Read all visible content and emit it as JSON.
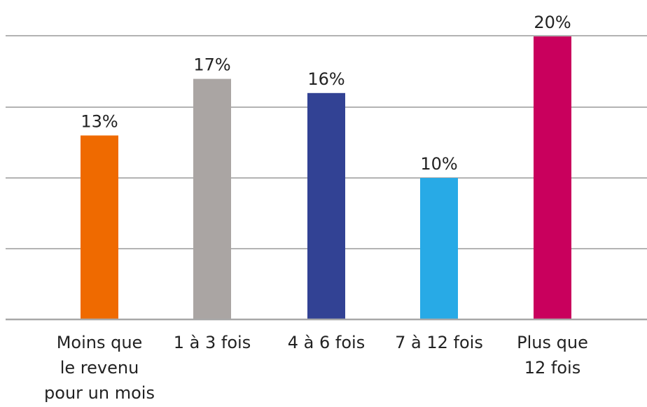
{
  "chart_data": {
    "type": "bar",
    "title": "",
    "xlabel": "",
    "ylabel": "",
    "ylim": [
      0,
      20
    ],
    "grid": true,
    "legend": "none",
    "categories": [
      [
        "Moins que",
        "le revenu",
        "pour un mois"
      ],
      [
        "1 à 3 fois"
      ],
      [
        "4 à 6 fois"
      ],
      [
        "7 à 12 fois"
      ],
      [
        "Plus que",
        "12 fois"
      ]
    ],
    "values": [
      13,
      17,
      16,
      10,
      20
    ],
    "value_labels": [
      "13%",
      "17%",
      "16%",
      "10%",
      "20%"
    ],
    "colors": [
      "#ef6a00",
      "#aaa5a3",
      "#324294",
      "#28aae6",
      "#c9005d"
    ]
  }
}
